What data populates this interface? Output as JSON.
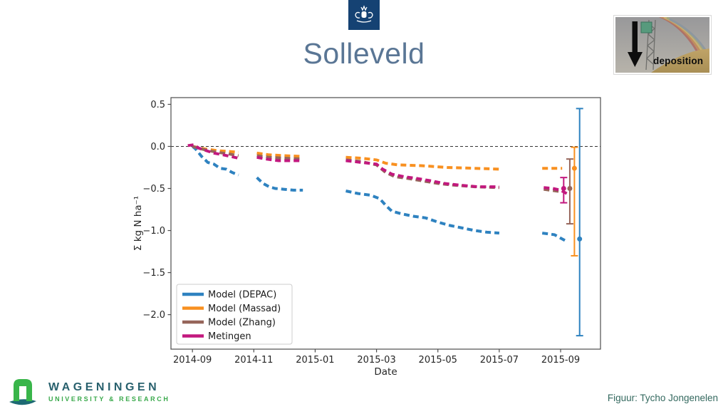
{
  "slide": {
    "title": "Solleveld",
    "credit": "Figuur: Tycho Jongenelen"
  },
  "header_logo": {
    "name": "rijksoverheid-emblem",
    "bg_color": "#154273"
  },
  "inset": {
    "caption": "deposition"
  },
  "footer_logo": {
    "name": "WAGENINGEN",
    "subtitle": "UNIVERSITY & RESEARCH",
    "wordmark_color": "#29616e",
    "subtitle_color": "#39a94b"
  },
  "chart_data": {
    "type": "line",
    "title": "",
    "xlabel": "Date",
    "ylabel": "Σ kg N ha⁻¹",
    "x_tick_labels": [
      "2014-09",
      "2014-11",
      "2015-01",
      "2015-03",
      "2015-05",
      "2015-07",
      "2015-09"
    ],
    "x_tick_months": [
      0,
      2,
      4,
      6,
      8,
      10,
      12
    ],
    "y_tick_labels": [
      "0.5",
      "0.0",
      "−0.5",
      "−1.0",
      "−1.5",
      "−2.0"
    ],
    "y_tick_values": [
      0.5,
      0,
      -0.5,
      -1,
      -1.5,
      -2
    ],
    "xlim_months": [
      -0.7,
      13.3
    ],
    "ylim": [
      -2.41,
      0.58
    ],
    "zero_line_value": 0,
    "grid": false,
    "legend_position": "lower left",
    "legend_entries": [
      "Model (DEPAC)",
      "Model (Massad)",
      "Model (Zhang)",
      "Metingen"
    ],
    "series": [
      {
        "name": "Model (DEPAC)",
        "color": "#2e82c0",
        "segments": [
          [
            [
              0,
              0
            ],
            [
              0.1,
              -0.03
            ],
            [
              0.3,
              -0.12
            ],
            [
              0.5,
              -0.19
            ],
            [
              0.7,
              -0.21
            ],
            [
              0.9,
              -0.26
            ],
            [
              1.1,
              -0.27
            ],
            [
              1.3,
              -0.31
            ],
            [
              1.5,
              -0.34
            ]
          ],
          [
            [
              2.1,
              -0.37
            ],
            [
              2.3,
              -0.44
            ],
            [
              2.5,
              -0.48
            ],
            [
              2.7,
              -0.5
            ],
            [
              3.0,
              -0.51
            ],
            [
              3.3,
              -0.52
            ],
            [
              3.6,
              -0.52
            ]
          ],
          [
            [
              5.0,
              -0.53
            ],
            [
              5.4,
              -0.56
            ],
            [
              5.8,
              -0.58
            ],
            [
              6.1,
              -0.62
            ],
            [
              6.3,
              -0.7
            ],
            [
              6.5,
              -0.77
            ],
            [
              6.8,
              -0.8
            ],
            [
              7.2,
              -0.83
            ],
            [
              7.6,
              -0.85
            ],
            [
              8.0,
              -0.9
            ],
            [
              8.4,
              -0.94
            ],
            [
              8.8,
              -0.97
            ],
            [
              9.2,
              -1.0
            ],
            [
              9.6,
              -1.02
            ],
            [
              10.0,
              -1.03
            ]
          ],
          [
            [
              11.4,
              -1.03
            ],
            [
              11.8,
              -1.05
            ],
            [
              12.15,
              -1.12
            ]
          ]
        ],
        "errorbar": {
          "month": 12.62,
          "value": -1.1,
          "hi": 0.45,
          "lo": -2.25
        }
      },
      {
        "name": "Model (Massad)",
        "color": "#f89020",
        "segments": [
          [
            [
              0,
              0
            ],
            [
              0.4,
              -0.03
            ],
            [
              0.8,
              -0.05
            ],
            [
              1.2,
              -0.06
            ],
            [
              1.5,
              -0.07
            ]
          ],
          [
            [
              2.1,
              -0.08
            ],
            [
              2.5,
              -0.1
            ],
            [
              3.0,
              -0.11
            ],
            [
              3.6,
              -0.12
            ]
          ],
          [
            [
              5.0,
              -0.13
            ],
            [
              5.5,
              -0.14
            ],
            [
              6.0,
              -0.16
            ],
            [
              6.3,
              -0.2
            ],
            [
              6.7,
              -0.22
            ],
            [
              7.5,
              -0.23
            ],
            [
              8.3,
              -0.25
            ],
            [
              9.2,
              -0.26
            ],
            [
              10.0,
              -0.27
            ]
          ],
          [
            [
              11.4,
              -0.26
            ],
            [
              12.05,
              -0.26
            ]
          ]
        ],
        "errorbar": {
          "month": 12.45,
          "value": -0.26,
          "hi": -0.01,
          "lo": -1.3
        }
      },
      {
        "name": "Model (Zhang)",
        "color": "#96655a",
        "segments": [
          [
            [
              0,
              0
            ],
            [
              0.4,
              -0.04
            ],
            [
              0.8,
              -0.07
            ],
            [
              1.2,
              -0.09
            ],
            [
              1.5,
              -0.11
            ]
          ],
          [
            [
              2.1,
              -0.11
            ],
            [
              2.5,
              -0.13
            ],
            [
              3.0,
              -0.14
            ],
            [
              3.6,
              -0.15
            ]
          ],
          [
            [
              5.0,
              -0.16
            ],
            [
              5.5,
              -0.18
            ],
            [
              6.0,
              -0.22
            ],
            [
              6.3,
              -0.31
            ],
            [
              6.6,
              -0.36
            ],
            [
              7.0,
              -0.38
            ],
            [
              7.5,
              -0.41
            ],
            [
              8.0,
              -0.44
            ],
            [
              8.5,
              -0.46
            ],
            [
              9.2,
              -0.48
            ],
            [
              10.0,
              -0.49
            ]
          ],
          [
            [
              11.45,
              -0.51
            ],
            [
              12.05,
              -0.54
            ]
          ]
        ],
        "errorbar": {
          "month": 12.3,
          "value": -0.5,
          "hi": -0.15,
          "lo": -0.92
        }
      },
      {
        "name": "Metingen",
        "color": "#c2187e",
        "segments": [
          [
            [
              -0.15,
              0.01
            ],
            [
              0.05,
              0.02
            ],
            [
              0.2,
              -0.02
            ],
            [
              0.45,
              -0.05
            ],
            [
              0.7,
              -0.08
            ],
            [
              1.0,
              -0.1
            ],
            [
              1.25,
              -0.12
            ],
            [
              1.5,
              -0.14
            ]
          ],
          [
            [
              2.1,
              -0.13
            ],
            [
              2.4,
              -0.15
            ],
            [
              2.8,
              -0.17
            ],
            [
              3.6,
              -0.17
            ]
          ],
          [
            [
              5.0,
              -0.17
            ],
            [
              5.5,
              -0.19
            ],
            [
              6.0,
              -0.21
            ],
            [
              6.2,
              -0.27
            ],
            [
              6.5,
              -0.33
            ],
            [
              6.9,
              -0.36
            ],
            [
              7.3,
              -0.38
            ],
            [
              7.8,
              -0.41
            ],
            [
              8.2,
              -0.44
            ],
            [
              8.7,
              -0.46
            ],
            [
              9.3,
              -0.48
            ],
            [
              10.0,
              -0.48
            ]
          ],
          [
            [
              11.45,
              -0.49
            ],
            [
              11.75,
              -0.5
            ],
            [
              12.0,
              -0.52
            ],
            [
              12.2,
              -0.56
            ]
          ]
        ],
        "errorbar": {
          "month": 12.1,
          "value": -0.5,
          "hi": -0.37,
          "lo": -0.67
        }
      }
    ]
  }
}
